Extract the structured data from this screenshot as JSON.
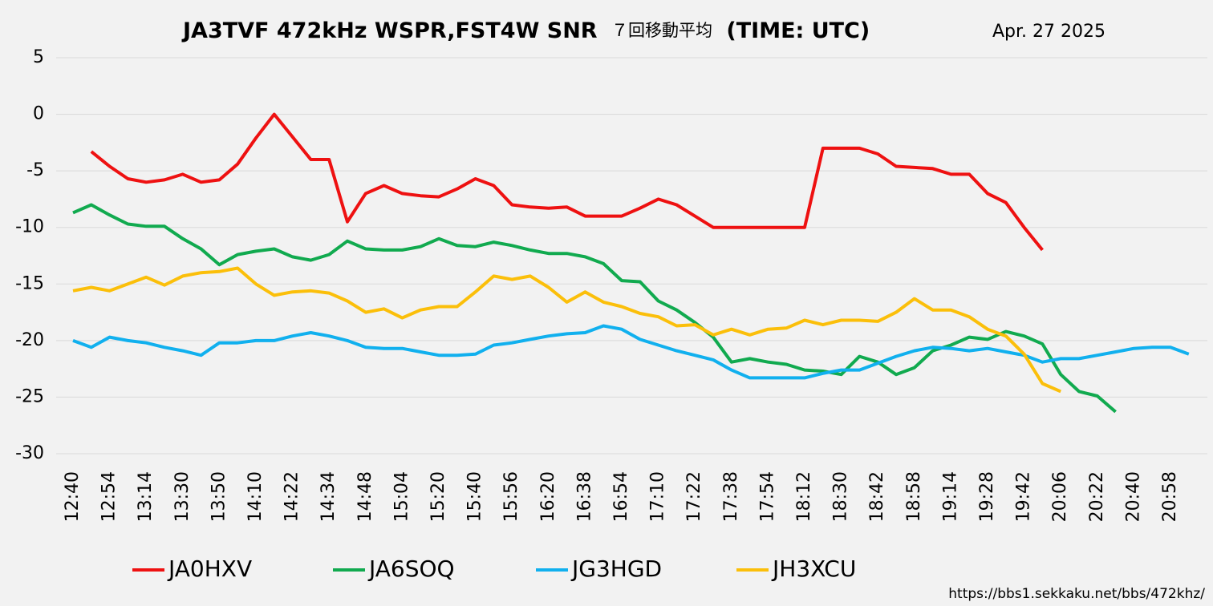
{
  "chart_data": {
    "type": "line",
    "title_parts": [
      "JA3TVF 472kHz WSPR,FST4W SNR",
      "７回移動平均",
      "(TIME: UTC)"
    ],
    "subtitle": "Apr. 27 2025",
    "source": "https://bbs1.sekkaku.net/bbs/472khz/",
    "categories": [
      "12:40",
      null,
      "12:54",
      null,
      "13:14",
      null,
      "13:30",
      null,
      "13:50",
      null,
      "14:10",
      null,
      "14:22",
      null,
      "14:34",
      null,
      "14:48",
      null,
      "15:04",
      null,
      "15:20",
      null,
      "15:40",
      null,
      "15:56",
      null,
      "16:20",
      null,
      "16:38",
      null,
      "16:54",
      null,
      "17:10",
      null,
      "17:22",
      null,
      "17:38",
      null,
      "17:54",
      null,
      "18:12",
      null,
      "18:30",
      null,
      "18:42",
      null,
      "18:58",
      null,
      "19:14",
      null,
      "19:28",
      null,
      "19:42",
      null,
      "20:06",
      null,
      "20:22",
      null,
      "20:40",
      null,
      "20:58",
      null
    ],
    "ylim": [
      -30,
      5
    ],
    "yticks": [
      -30,
      -25,
      -20,
      -15,
      -10,
      -5,
      0,
      5
    ],
    "grid": true,
    "legend": "bottom",
    "series": [
      {
        "name": "JA0HXV",
        "color": "#ee1111",
        "values": [
          null,
          -3.3,
          -4.6,
          -5.7,
          -6.0,
          -5.8,
          -5.3,
          -6.0,
          -5.8,
          -4.4,
          -2.1,
          0,
          -2.0,
          -4.0,
          -4.0,
          -9.5,
          -7.0,
          -6.3,
          -7.0,
          -7.2,
          -7.3,
          -6.6,
          -5.7,
          -6.3,
          -8.0,
          -8.2,
          -8.3,
          -8.2,
          -9.0,
          -9.0,
          -9.0,
          -8.3,
          -7.5,
          -8.0,
          -9.0,
          -10.0,
          -10.0,
          -10.0,
          -10.0,
          -10.0,
          -10.0,
          -3.0,
          -3.0,
          -3.0,
          -3.5,
          -4.6,
          -4.7,
          -4.8,
          -5.3,
          -5.3,
          -7.0,
          -7.8,
          -10.0,
          -12.0,
          null,
          null,
          null,
          null,
          null,
          null,
          null,
          null
        ]
      },
      {
        "name": "JA6SOQ",
        "color": "#11aa4f",
        "values": [
          -8.7,
          -8.0,
          -8.9,
          -9.7,
          -9.9,
          -9.9,
          -11.0,
          -11.9,
          -13.3,
          -12.4,
          -12.1,
          -11.9,
          -12.6,
          -12.9,
          -12.4,
          -11.2,
          -11.9,
          -12.0,
          -12.0,
          -11.7,
          -11.0,
          -11.6,
          -11.7,
          -11.3,
          -11.6,
          -12.0,
          -12.3,
          -12.3,
          -12.6,
          -13.2,
          -14.7,
          -14.8,
          -16.5,
          -17.3,
          -18.4,
          -19.7,
          -21.9,
          -21.6,
          -21.9,
          -22.1,
          -22.6,
          -22.7,
          -23.0,
          -21.4,
          -21.9,
          -23.0,
          -22.4,
          -20.9,
          -20.4,
          -19.7,
          -19.9,
          -19.2,
          -19.6,
          -20.3,
          -23.0,
          -24.5,
          -24.9,
          -26.3,
          null,
          null,
          null,
          null
        ]
      },
      {
        "name": "JG3HGD",
        "color": "#11b0ee",
        "values": [
          -20.0,
          -20.6,
          -19.7,
          -20.0,
          -20.2,
          -20.6,
          -20.9,
          -21.3,
          -20.2,
          -20.2,
          -20.0,
          -20.0,
          -19.6,
          -19.3,
          -19.6,
          -20.0,
          -20.6,
          -20.7,
          -20.7,
          -21.0,
          -21.3,
          -21.3,
          -21.2,
          -20.4,
          -20.2,
          -19.9,
          -19.6,
          -19.4,
          -19.3,
          -18.7,
          -19.0,
          -19.9,
          -20.4,
          -20.9,
          -21.3,
          -21.7,
          -22.6,
          -23.3,
          -23.3,
          -23.3,
          -23.3,
          -22.9,
          -22.6,
          -22.6,
          -22.0,
          -21.4,
          -20.9,
          -20.6,
          -20.7,
          -20.9,
          -20.7,
          -21.0,
          -21.3,
          -21.9,
          -21.6,
          -21.6,
          -21.3,
          -21.0,
          -20.7,
          -20.6,
          -20.6,
          -21.2
        ]
      },
      {
        "name": "JH3XCU",
        "color": "#fbbf0a",
        "values": [
          -15.6,
          -15.3,
          -15.6,
          -15.0,
          -14.4,
          -15.1,
          -14.3,
          -14.0,
          -13.9,
          -13.6,
          -15.0,
          -16.0,
          -15.7,
          -15.6,
          -15.8,
          -16.5,
          -17.5,
          -17.2,
          -18.0,
          -17.3,
          -17.0,
          -17.0,
          -15.7,
          -14.3,
          -14.6,
          -14.3,
          -15.3,
          -16.6,
          -15.7,
          -16.6,
          -17.0,
          -17.6,
          -17.9,
          -18.7,
          -18.6,
          -19.5,
          -19.0,
          -19.5,
          -19.0,
          -18.9,
          -18.2,
          -18.6,
          -18.2,
          -18.2,
          -18.3,
          -17.5,
          -16.3,
          -17.3,
          -17.3,
          -17.9,
          -19.0,
          -19.6,
          -21.2,
          -23.8,
          -24.5,
          null,
          null,
          null,
          null,
          null,
          null,
          null
        ]
      }
    ]
  }
}
